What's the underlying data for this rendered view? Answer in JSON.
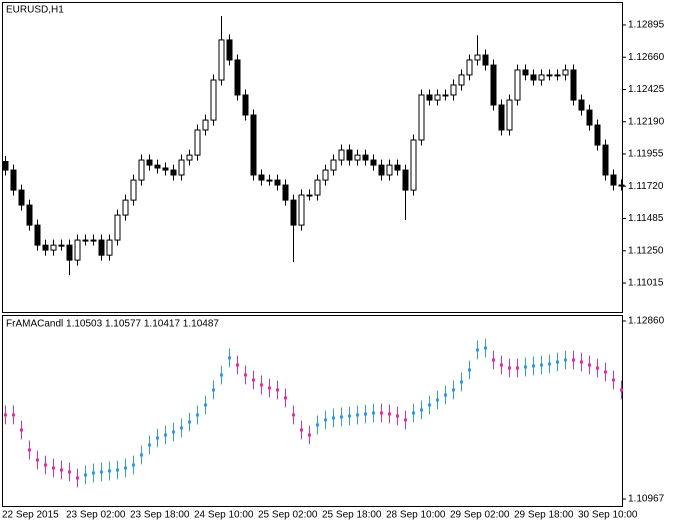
{
  "chart_data": [
    {
      "type": "candlestick",
      "title": "EURUSD,H1",
      "categories": [
        "22 Sep 2015",
        null,
        null,
        null,
        null,
        null,
        null,
        null,
        "23 Sep 02:00",
        null,
        null,
        null,
        null,
        null,
        null,
        null,
        "23 Sep 18:00",
        null,
        null,
        null,
        null,
        null,
        null,
        null,
        "24 Sep 10:00",
        null,
        null,
        null,
        null,
        null,
        null,
        null,
        "25 Sep 02:00",
        null,
        null,
        null,
        null,
        null,
        null,
        null,
        "25 Sep 18:00",
        null,
        null,
        null,
        null,
        null,
        null,
        null,
        "28 Sep 10:00",
        null,
        null,
        null,
        null,
        null,
        null,
        null,
        "29 Sep 02:00",
        null,
        null,
        null,
        null,
        null,
        null,
        null,
        "29 Sep 18:00",
        null,
        null,
        null,
        null,
        null,
        null,
        null,
        "30 Sep 10:00",
        null,
        null,
        null,
        null,
        null
      ],
      "open": [
        1.119,
        1.11838,
        1.11692,
        1.11583,
        1.11437,
        1.11291,
        1.11255,
        1.11291,
        1.11291,
        1.11182,
        1.11328,
        1.11328,
        1.11328,
        1.11218,
        1.11328,
        1.1151,
        1.11619,
        1.11765,
        1.11911,
        1.11874,
        1.11853,
        1.11838,
        1.11802,
        1.11911,
        1.11947,
        1.1213,
        1.12202,
        1.12494,
        1.12786,
        1.1264,
        1.12385,
        1.12239,
        1.11802,
        1.11765,
        1.11765,
        1.11729,
        1.11619,
        1.11437,
        1.11656,
        1.11656,
        1.11765,
        1.11838,
        1.11911,
        1.11984,
        1.11911,
        1.11947,
        1.11911,
        1.11874,
        1.11802,
        1.11874,
        1.11838,
        1.11692,
        1.12057,
        1.12385,
        1.12348,
        1.12385,
        1.12385,
        1.12458,
        1.12531,
        1.1264,
        1.12676,
        1.12603,
        1.12312,
        1.1213,
        1.12348,
        1.12567,
        1.12531,
        1.12494,
        1.12531,
        1.12531,
        1.12531,
        1.12567,
        1.12348,
        1.12275,
        1.12166,
        1.1202,
        1.11802,
        1.11729
      ],
      "high": [
        1.1194,
        1.11878,
        1.11732,
        1.11623,
        1.11477,
        1.11331,
        1.11331,
        1.11331,
        1.11331,
        1.11368,
        1.11368,
        1.11368,
        1.11368,
        1.11368,
        1.1155,
        1.11659,
        1.11805,
        1.11951,
        1.11951,
        1.11914,
        1.11893,
        1.11878,
        1.11951,
        1.11987,
        1.1217,
        1.12242,
        1.12534,
        1.1296,
        1.12826,
        1.1268,
        1.12425,
        1.12279,
        1.11842,
        1.11805,
        1.11805,
        1.11769,
        1.11659,
        1.11696,
        1.11696,
        1.11805,
        1.11878,
        1.11951,
        1.12024,
        1.12024,
        1.11987,
        1.11987,
        1.11951,
        1.11914,
        1.11914,
        1.11914,
        1.11878,
        1.12097,
        1.12425,
        1.12425,
        1.12425,
        1.12425,
        1.12498,
        1.12571,
        1.1268,
        1.1282,
        1.12716,
        1.12643,
        1.12352,
        1.12388,
        1.12607,
        1.12607,
        1.12571,
        1.12571,
        1.12571,
        1.12571,
        1.12607,
        1.12607,
        1.12388,
        1.12315,
        1.12206,
        1.1206,
        1.11842,
        1.11769
      ],
      "low": [
        1.11798,
        1.11652,
        1.11543,
        1.11397,
        1.11251,
        1.11215,
        1.11215,
        1.11251,
        1.11073,
        1.11142,
        1.11288,
        1.11288,
        1.11178,
        1.11178,
        1.11288,
        1.1147,
        1.11579,
        1.11725,
        1.11834,
        1.11813,
        1.11798,
        1.11762,
        1.11762,
        1.11871,
        1.11907,
        1.1209,
        1.12162,
        1.12454,
        1.126,
        1.12345,
        1.12199,
        1.11762,
        1.11725,
        1.11725,
        1.11689,
        1.11579,
        1.11167,
        1.11397,
        1.11616,
        1.11616,
        1.11725,
        1.11798,
        1.11871,
        1.11871,
        1.11871,
        1.11871,
        1.11834,
        1.11762,
        1.11762,
        1.11798,
        1.11473,
        1.11652,
        1.12017,
        1.12308,
        1.12308,
        1.12345,
        1.12345,
        1.12418,
        1.12491,
        1.126,
        1.12563,
        1.12272,
        1.1209,
        1.1209,
        1.12308,
        1.12491,
        1.12454,
        1.12454,
        1.12491,
        1.12491,
        1.12491,
        1.12308,
        1.12235,
        1.12126,
        1.1198,
        1.11762,
        1.11689,
        1.11689
      ],
      "close": [
        1.11838,
        1.11692,
        1.11583,
        1.11437,
        1.11291,
        1.11255,
        1.11291,
        1.11291,
        1.11182,
        1.11328,
        1.11328,
        1.11328,
        1.11218,
        1.11328,
        1.1151,
        1.11619,
        1.11765,
        1.11911,
        1.11874,
        1.11853,
        1.11838,
        1.11802,
        1.11911,
        1.11947,
        1.1213,
        1.12202,
        1.12494,
        1.12786,
        1.1264,
        1.12385,
        1.12239,
        1.11802,
        1.11765,
        1.11765,
        1.11729,
        1.11619,
        1.11437,
        1.11656,
        1.11656,
        1.11765,
        1.11838,
        1.11911,
        1.11984,
        1.11911,
        1.11947,
        1.11911,
        1.11874,
        1.11802,
        1.11874,
        1.11838,
        1.11692,
        1.12057,
        1.12385,
        1.12348,
        1.12385,
        1.12385,
        1.12458,
        1.12531,
        1.1264,
        1.12676,
        1.12603,
        1.12312,
        1.1213,
        1.12348,
        1.12567,
        1.12531,
        1.12494,
        1.12531,
        1.12531,
        1.12531,
        1.12567,
        1.12348,
        1.12275,
        1.12166,
        1.1202,
        1.11802,
        1.11729,
        1.11729
      ],
      "up_color": "#ffffff",
      "down_color": "#000000",
      "ylim": [
        1.10804,
        1.13055
      ],
      "yticks": [
        1.12895,
        {
          "value": 1.1266,
          "label": "1.12660"
        },
        1.12425,
        {
          "value": 1.1219,
          "label": "1.12190"
        },
        1.11955,
        {
          "value": 1.1172,
          "label": "1.11720"
        },
        1.11485,
        {
          "value": 1.1125,
          "label": "1.11250"
        },
        1.11015
      ]
    },
    {
      "type": "range",
      "title": "FrAMACandl 1.10503 1.10577 1.10417 1.10487",
      "values": [
        1.11861,
        1.11861,
        1.11701,
        1.11489,
        1.11382,
        1.11329,
        1.11297,
        1.11276,
        1.11255,
        1.11191,
        1.11223,
        1.11244,
        1.11255,
        1.11266,
        1.11276,
        1.11297,
        1.11329,
        1.11436,
        1.11542,
        1.11616,
        1.11648,
        1.1168,
        1.11723,
        1.11786,
        1.11861,
        1.11967,
        1.12127,
        1.12286,
        1.12467,
        1.12392,
        1.12286,
        1.12233,
        1.1218,
        1.12148,
        1.12127,
        1.12042,
        1.11861,
        1.11701,
        1.11648,
        1.11755,
        1.11808,
        1.11829,
        1.1184,
        1.1185,
        1.11861,
        1.11871,
        1.11882,
        1.11882,
        1.11871,
        1.1185,
        1.11808,
        1.11882,
        1.11914,
        1.11967,
        1.1202,
        1.12073,
        1.12127,
        1.12212,
        1.12339,
        1.12552,
        1.12573,
        1.12445,
        1.12392,
        1.1236,
        1.1236,
        1.12371,
        1.12382,
        1.12392,
        1.12403,
        1.12424,
        1.12445,
        1.12445,
        1.12424,
        1.12392,
        1.1236,
        1.12318,
        1.12233,
        1.12127
      ],
      "high": [
        1.11961,
        1.11961,
        1.11801,
        1.11589,
        1.11482,
        1.11429,
        1.11397,
        1.11376,
        1.11355,
        1.11291,
        1.11323,
        1.11344,
        1.11355,
        1.11366,
        1.11376,
        1.11397,
        1.11429,
        1.11536,
        1.11642,
        1.11716,
        1.11748,
        1.1178,
        1.11823,
        1.11886,
        1.11961,
        1.12067,
        1.12227,
        1.12386,
        1.12567,
        1.12492,
        1.12386,
        1.12333,
        1.1228,
        1.12248,
        1.12227,
        1.12142,
        1.11961,
        1.11801,
        1.11748,
        1.11855,
        1.11908,
        1.11929,
        1.1194,
        1.1195,
        1.11961,
        1.11971,
        1.11982,
        1.11982,
        1.11971,
        1.1195,
        1.11908,
        1.11982,
        1.12014,
        1.12067,
        1.1212,
        1.12173,
        1.12227,
        1.12312,
        1.12439,
        1.12652,
        1.12673,
        1.12545,
        1.12492,
        1.1246,
        1.1246,
        1.12471,
        1.12482,
        1.12492,
        1.12503,
        1.12524,
        1.12545,
        1.12545,
        1.12524,
        1.12492,
        1.1246,
        1.12418,
        1.12333,
        1.12227
      ],
      "low": [
        1.11761,
        1.11761,
        1.11601,
        1.11389,
        1.11282,
        1.11229,
        1.11197,
        1.11176,
        1.11155,
        1.11091,
        1.11123,
        1.11144,
        1.11155,
        1.11166,
        1.11176,
        1.11197,
        1.11229,
        1.11336,
        1.11442,
        1.11516,
        1.11548,
        1.1158,
        1.11623,
        1.11686,
        1.11761,
        1.11867,
        1.12027,
        1.12186,
        1.12367,
        1.12292,
        1.12186,
        1.12133,
        1.1208,
        1.12048,
        1.12027,
        1.11942,
        1.11761,
        1.11601,
        1.11548,
        1.11655,
        1.11708,
        1.11729,
        1.1174,
        1.1175,
        1.11761,
        1.11771,
        1.11782,
        1.11782,
        1.11771,
        1.1175,
        1.11708,
        1.11782,
        1.11814,
        1.11867,
        1.1192,
        1.11973,
        1.12027,
        1.12112,
        1.12239,
        1.12452,
        1.12473,
        1.12345,
        1.12292,
        1.1226,
        1.1226,
        1.12271,
        1.12282,
        1.12292,
        1.12303,
        1.12324,
        1.12345,
        1.12345,
        1.12324,
        1.12292,
        1.1226,
        1.12218,
        1.12133,
        1.12027
      ],
      "up_color": "#3399ee",
      "down_color": "#e0309e",
      "ylim": [
        1.10893,
        1.12913
      ],
      "yticks": [
        {
          "value": 1.1286,
          "label": "1.12860"
        },
        1.10967
      ]
    }
  ]
}
